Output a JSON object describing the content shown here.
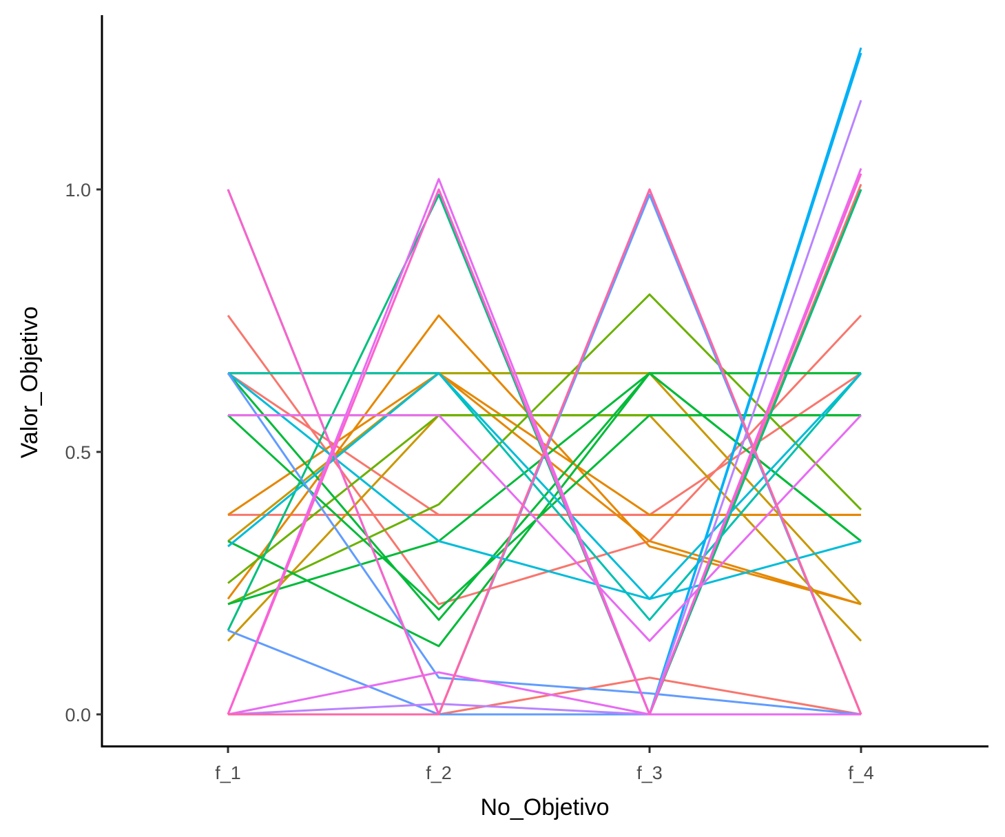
{
  "chart_data": {
    "type": "line",
    "title": "",
    "xlabel": "No_Objetivo",
    "ylabel": "Valor_Objetivo",
    "categories": [
      "f_1",
      "f_2",
      "f_3",
      "f_4"
    ],
    "ylim": [
      -0.06,
      1.33
    ],
    "yticks": [
      0.0,
      0.5,
      1.0
    ],
    "ytick_labels": [
      "0.0",
      "0.5",
      "1.0"
    ],
    "grid": false,
    "legend": "none",
    "series": [
      {
        "color": "#F8766D",
        "values": [
          1.0,
          0.0,
          1.0,
          0.0
        ]
      },
      {
        "color": "#F8766D",
        "values": [
          0.0,
          0.0,
          0.0,
          1.0
        ]
      },
      {
        "color": "#F8766D",
        "values": [
          0.0,
          0.0,
          0.07,
          0.0
        ]
      },
      {
        "color": "#F8766D",
        "values": [
          0.76,
          0.21,
          0.33,
          0.76
        ]
      },
      {
        "color": "#F8766D",
        "values": [
          0.38,
          0.38,
          0.38,
          0.38
        ]
      },
      {
        "color": "#F8766D",
        "values": [
          0.65,
          0.38,
          0.38,
          0.65
        ]
      },
      {
        "color": "#F8766D",
        "values": [
          0.0,
          1.0,
          0.0,
          1.01
        ]
      },
      {
        "color": "#E58700",
        "values": [
          0.22,
          0.76,
          0.32,
          0.21
        ]
      },
      {
        "color": "#E58700",
        "values": [
          0.38,
          0.65,
          0.38,
          0.38
        ]
      },
      {
        "color": "#E58700",
        "values": [
          0.65,
          0.65,
          0.33,
          0.21
        ]
      },
      {
        "color": "#C99800",
        "values": [
          0.14,
          0.57,
          0.57,
          0.14
        ]
      },
      {
        "color": "#C99800",
        "values": [
          0.33,
          0.65,
          0.65,
          0.21
        ]
      },
      {
        "color": "#A3A500",
        "values": [
          0.57,
          0.57,
          0.57,
          0.57
        ]
      },
      {
        "color": "#A3A500",
        "values": [
          0.65,
          0.65,
          0.65,
          0.65
        ]
      },
      {
        "color": "#6BB100",
        "values": [
          0.21,
          0.4,
          0.8,
          0.39
        ]
      },
      {
        "color": "#6BB100",
        "values": [
          0.25,
          0.57,
          0.57,
          0.57
        ]
      },
      {
        "color": "#00BA38",
        "values": [
          0.57,
          0.2,
          0.57,
          0.57
        ]
      },
      {
        "color": "#00BA38",
        "values": [
          0.33,
          0.13,
          0.65,
          0.33
        ]
      },
      {
        "color": "#00BA38",
        "values": [
          0.65,
          0.18,
          0.65,
          0.65
        ]
      },
      {
        "color": "#00BA38",
        "values": [
          0.21,
          0.33,
          0.65,
          0.33
        ]
      },
      {
        "color": "#00BF7D",
        "values": [
          0.16,
          0.99,
          0.0,
          1.0
        ]
      },
      {
        "color": "#00BF7D",
        "values": [
          1.0,
          0.0,
          0.0,
          1.0
        ]
      },
      {
        "color": "#00C0AF",
        "values": [
          0.65,
          0.65,
          0.18,
          0.65
        ]
      },
      {
        "color": "#00BCD8",
        "values": [
          0.32,
          0.65,
          0.22,
          0.33
        ]
      },
      {
        "color": "#00BCD8",
        "values": [
          0.65,
          0.33,
          0.22,
          0.65
        ]
      },
      {
        "color": "#00B0F6",
        "values": [
          0.0,
          0.0,
          0.0,
          1.27
        ]
      },
      {
        "color": "#00B0F6",
        "values": [
          0.0,
          0.0,
          0.0,
          1.26
        ]
      },
      {
        "color": "#619CFF",
        "values": [
          0.16,
          0.0,
          0.0,
          0.0
        ]
      },
      {
        "color": "#619CFF",
        "values": [
          0.65,
          0.07,
          0.04,
          0.0
        ]
      },
      {
        "color": "#619CFF",
        "values": [
          0.0,
          0.0,
          0.99,
          0.0
        ]
      },
      {
        "color": "#B983FF",
        "values": [
          0.0,
          0.02,
          0.0,
          1.17
        ]
      },
      {
        "color": "#E76BF3",
        "values": [
          0.57,
          0.57,
          0.14,
          0.57
        ]
      },
      {
        "color": "#E76BF3",
        "values": [
          0.0,
          0.08,
          0.0,
          0.0
        ]
      },
      {
        "color": "#E76BF3",
        "values": [
          0.0,
          1.02,
          0.0,
          1.04
        ]
      },
      {
        "color": "#FD61D1",
        "values": [
          1.0,
          0.0,
          1.0,
          0.0
        ]
      },
      {
        "color": "#FD61D1",
        "values": [
          0.0,
          1.0,
          0.0,
          1.03
        ]
      },
      {
        "color": "#FF67A4",
        "values": [
          0.0,
          0.0,
          1.0,
          0.0
        ]
      }
    ]
  }
}
